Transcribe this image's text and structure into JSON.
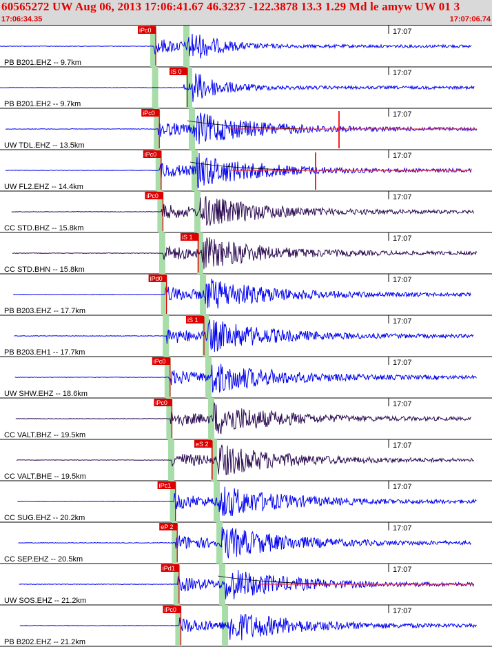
{
  "header": {
    "title": "60565272 UW Aug 06, 2013 17:06:41.67    46.3237 -122.3878 13.3 1.29 Md le amyw UW 01   3",
    "start_time": "17:06:34.35",
    "end_time": "17:07:06.74"
  },
  "colors": {
    "header_bg": "#d9d9d9",
    "header_text": "#e00000",
    "trace_blue": "#0000ee",
    "trace_dark": "#2a0a50",
    "pick_red": "#dd0000",
    "p_window_green": "#a8dca8",
    "coda_red": "#ff2020"
  },
  "traces": [
    {
      "label": "PB B201.EHZ -- 9.7km",
      "time_tick": "17:07",
      "pick": "iPc0",
      "style": "blue",
      "pick_t": 0.312
    },
    {
      "label": "PB B201.EH2 -- 9.7km",
      "time_tick": "17:07",
      "pick": "iS 0",
      "style": "blue",
      "pick_t": 0.376
    },
    {
      "label": "UW TDL.EHZ -- 13.5km",
      "time_tick": "17:07",
      "pick": "iPc0",
      "style": "blue",
      "pick_t": 0.325
    },
    {
      "label": "UW FL2.EHZ -- 14.4km",
      "time_tick": "17:07",
      "pick": "iPc0",
      "style": "blue",
      "pick_t": 0.328
    },
    {
      "label": "CC STD.BHZ -- 15.8km",
      "time_tick": "17:07",
      "pick": "iPc0",
      "style": "dark",
      "pick_t": 0.334
    },
    {
      "label": "CC STD.BHN -- 15.8km",
      "time_tick": "17:07",
      "pick": "iS 1",
      "style": "dark",
      "pick_t": 0.42
    },
    {
      "label": "PB B203.EHZ -- 17.7km",
      "time_tick": "17:07",
      "pick": "iPd0",
      "style": "blue",
      "pick_t": 0.339
    },
    {
      "label": "PB B203.EH1 -- 17.7km",
      "time_tick": "17:07",
      "pick": "iS 1",
      "style": "blue",
      "pick_t": 0.434
    },
    {
      "label": "UW SHW.EHZ -- 18.6km",
      "time_tick": "17:07",
      "pick": "iPc0",
      "style": "blue",
      "pick_t": 0.349
    },
    {
      "label": "CC VALT.BHZ -- 19.5km",
      "time_tick": "17:07",
      "pick": "iPc0",
      "style": "dark",
      "pick_t": 0.356
    },
    {
      "label": "CC VALT.BHE -- 19.5km",
      "time_tick": "17:07",
      "pick": "eS 2",
      "style": "dark",
      "pick_t": 0.465
    },
    {
      "label": "CC SUG.EHZ -- 20.2km",
      "time_tick": "17:07",
      "pick": "iPc1",
      "style": "blue",
      "pick_t": 0.363
    },
    {
      "label": "CC SEP.EHZ -- 20.5km",
      "time_tick": "17:07",
      "pick": "eP 2",
      "style": "blue",
      "pick_t": 0.363
    },
    {
      "label": "UW SOS.EHZ -- 21.2km",
      "time_tick": "17:07",
      "pick": "iPd1",
      "style": "blue",
      "pick_t": 0.358
    },
    {
      "label": "PB B202.EHZ -- 21.2km",
      "time_tick": "17:07",
      "pick": "iPc0",
      "style": "blue",
      "pick_t": 0.353
    }
  ]
}
